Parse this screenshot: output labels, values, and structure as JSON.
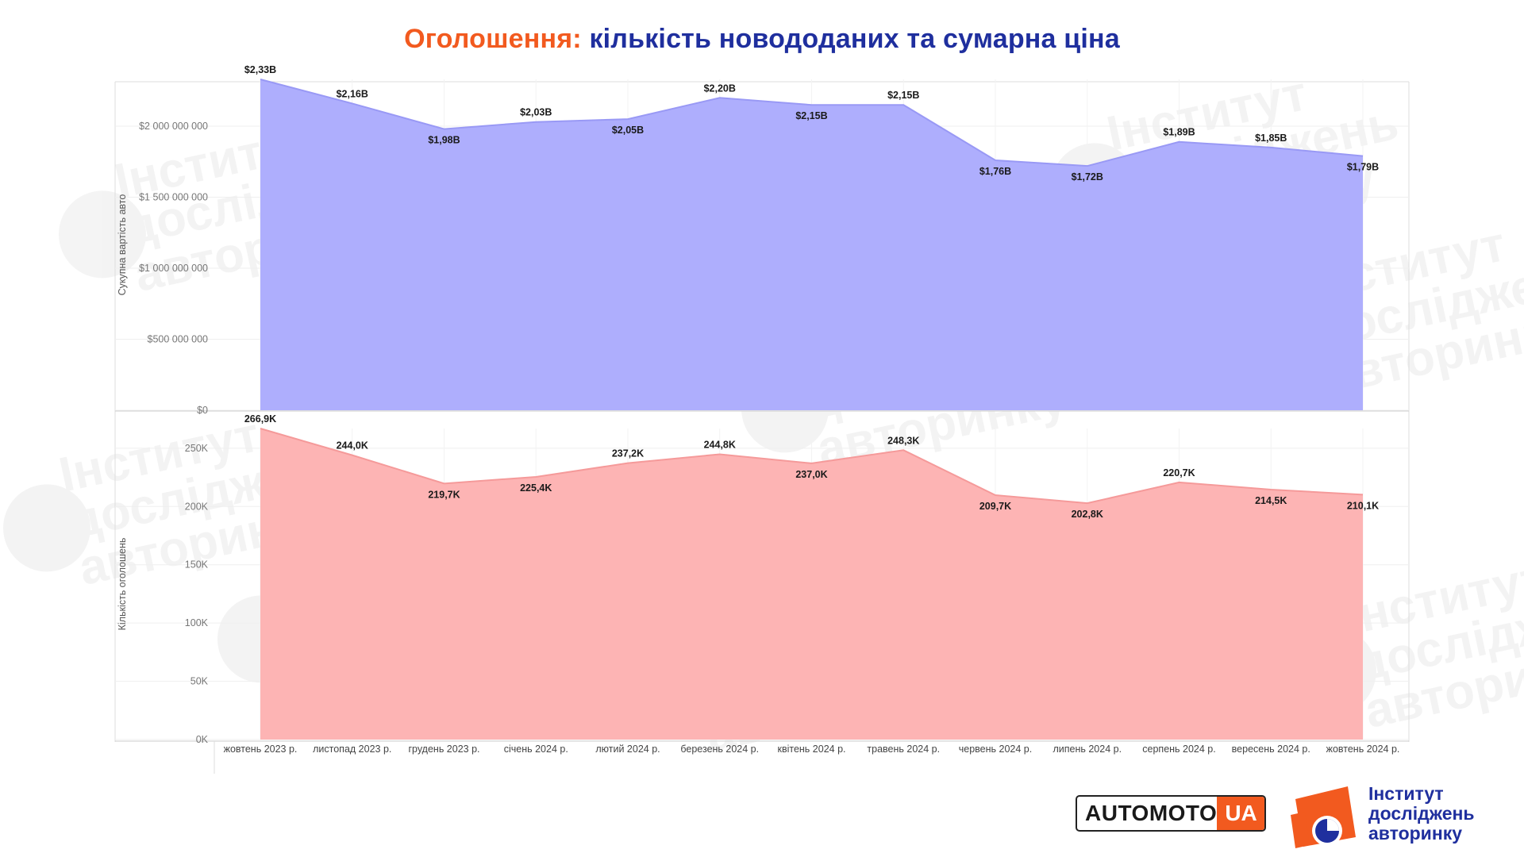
{
  "title": {
    "part1": "Оголошення:",
    "part2": "кількість новододаних та сумарна ціна"
  },
  "branding": {
    "automoto": "AUTOMOTO",
    "automoto_ua": "UA",
    "institute_line1": "Інститут",
    "institute_line2": "досліджень",
    "institute_line3": "авторинку"
  },
  "watermark_text": [
    "Інститут",
    "досліджень",
    "авторинку"
  ],
  "colors": {
    "top_fill": "#aaaafd",
    "top_line": "#9999f5",
    "bottom_fill": "#fdb0b0",
    "bottom_line": "#f59a9a",
    "accent_orange": "#f25a1f",
    "accent_blue": "#1f2f9e"
  },
  "chart_data": [
    {
      "type": "area",
      "ylabel": "Сукупна вартість авто",
      "ylim": [
        0,
        2330000000
      ],
      "yticks": [
        {
          "value": 0,
          "label": "$0"
        },
        {
          "value": 500000000,
          "label": "$500 000 000"
        },
        {
          "value": 1000000000,
          "label": "$1 000 000 000"
        },
        {
          "value": 1500000000,
          "label": "$1 500 000 000"
        },
        {
          "value": 2000000000,
          "label": "$2 000 000 000"
        }
      ],
      "categories": [
        "жовтень 2023 р.",
        "листопад 2023 р.",
        "грудень 2023 р.",
        "січень 2024 р.",
        "лютий 2024 р.",
        "березень 2024 р.",
        "квітень 2024 р.",
        "травень 2024 р.",
        "червень 2024 р.",
        "липень 2024 р.",
        "серпень 2024 р.",
        "вересень 2024 р.",
        "жовтень 2024 р."
      ],
      "values": [
        2330000000,
        2160000000,
        1980000000,
        2030000000,
        2050000000,
        2200000000,
        2150000000,
        2150000000,
        1760000000,
        1720000000,
        1890000000,
        1850000000,
        1790000000
      ],
      "labels": [
        "$2,33B",
        "$2,16B",
        "$1,98B",
        "$2,03B",
        "$2,05B",
        "$2,20B",
        "$2,15B",
        "$2,15B",
        "$1,76B",
        "$1,72B",
        "$1,89B",
        "$1,85B",
        "$1,79B"
      ],
      "label_pos": [
        "above",
        "above",
        "below",
        "above",
        "below",
        "above",
        "below",
        "above",
        "below",
        "below",
        "above",
        "above",
        "below"
      ],
      "grid": true
    },
    {
      "type": "area",
      "ylabel": "Кількість оголошень",
      "ylim": [
        0,
        266900
      ],
      "yticks": [
        {
          "value": 0,
          "label": "0K"
        },
        {
          "value": 50000,
          "label": "50K"
        },
        {
          "value": 100000,
          "label": "100K"
        },
        {
          "value": 150000,
          "label": "150K"
        },
        {
          "value": 200000,
          "label": "200K"
        },
        {
          "value": 250000,
          "label": "250K"
        }
      ],
      "categories": [
        "жовтень 2023 р.",
        "листопад 2023 р.",
        "грудень 2023 р.",
        "січень 2024 р.",
        "лютий 2024 р.",
        "березень 2024 р.",
        "квітень 2024 р.",
        "травень 2024 р.",
        "червень 2024 р.",
        "липень 2024 р.",
        "серпень 2024 р.",
        "вересень 2024 р.",
        "жовтень 2024 р."
      ],
      "values": [
        266900,
        244000,
        219700,
        225400,
        237200,
        244800,
        237000,
        248300,
        209700,
        202800,
        220700,
        214500,
        210100
      ],
      "labels": [
        "266,9K",
        "244,0K",
        "219,7K",
        "225,4K",
        "237,2K",
        "244,8K",
        "237,0K",
        "248,3K",
        "209,7K",
        "202,8K",
        "220,7K",
        "214,5K",
        "210,1K"
      ],
      "label_pos": [
        "above",
        "above",
        "below",
        "below",
        "above",
        "above",
        "below",
        "above",
        "below",
        "below",
        "above",
        "below",
        "below"
      ],
      "grid": true
    }
  ]
}
